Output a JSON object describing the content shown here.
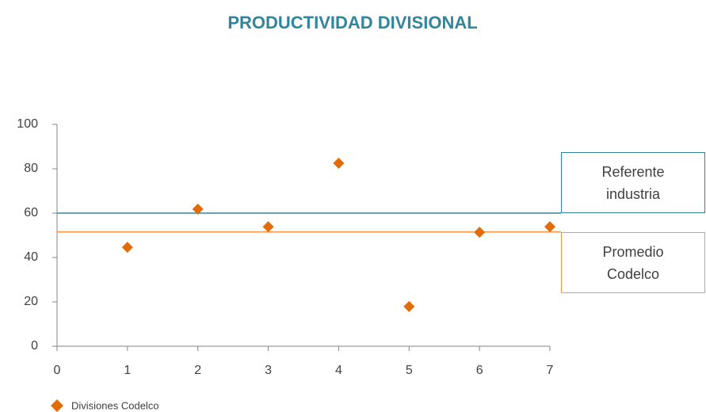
{
  "chart_data": {
    "type": "scatter",
    "title": "PRODUCTIVIDAD DIVISIONAL",
    "series": [
      {
        "name": "Divisiones Codelco",
        "color": "#e36c0a",
        "x": [
          1,
          2,
          3,
          4,
          5,
          6,
          7
        ],
        "values": [
          44.6,
          61.8,
          53.9,
          82.5,
          17.9,
          51.4,
          53.9
        ]
      }
    ],
    "reference_lines": [
      {
        "label": "Referente industria",
        "value": 60,
        "color": "#31859c"
      },
      {
        "label": "Promedio Codelco",
        "value": 51.5,
        "color": "#f79646"
      }
    ],
    "xlim": [
      0,
      7
    ],
    "xticks": [
      0,
      1,
      2,
      3,
      4,
      5,
      6,
      7
    ],
    "ylim": [
      0,
      100
    ],
    "yticks": [
      0,
      20,
      40,
      60,
      80,
      100
    ],
    "grid": false,
    "legend": "bottom-left"
  }
}
